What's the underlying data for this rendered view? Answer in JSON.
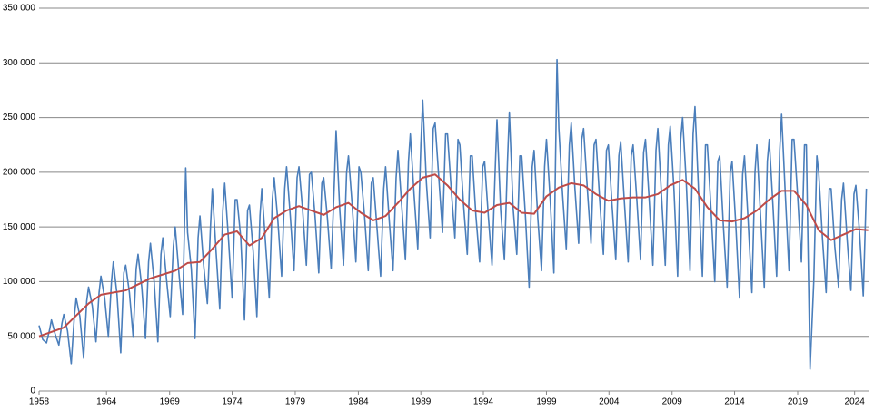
{
  "chart_data": {
    "type": "line",
    "xlim": [
      1958,
      2025.1
    ],
    "ylim": [
      0,
      350000
    ],
    "xticks": [
      {
        "value": 1958,
        "label": "1958"
      },
      {
        "value": 1963.45,
        "label": "1964"
      },
      {
        "value": 1968.55,
        "label": "1969"
      },
      {
        "value": 1973.6,
        "label": "1974"
      },
      {
        "value": 1978.7,
        "label": "1979"
      },
      {
        "value": 1983.8,
        "label": "1984"
      },
      {
        "value": 1988.85,
        "label": "1989"
      },
      {
        "value": 1993.9,
        "label": "1994"
      },
      {
        "value": 1999,
        "label": "1999"
      },
      {
        "value": 2004.05,
        "label": "2004"
      },
      {
        "value": 2009.15,
        "label": "2009"
      },
      {
        "value": 2014.2,
        "label": "2014"
      },
      {
        "value": 2019.3,
        "label": "2019"
      },
      {
        "value": 2023.9,
        "label": "2024"
      }
    ],
    "yticks": [
      {
        "value": 0,
        "label": "0"
      },
      {
        "value": 50000,
        "label": "50 000"
      },
      {
        "value": 100000,
        "label": "100 000"
      },
      {
        "value": 150000,
        "label": "150 000"
      },
      {
        "value": 200000,
        "label": "200 000"
      },
      {
        "value": 250000,
        "label": "250 000"
      },
      {
        "value": 300000,
        "label": "300 000"
      },
      {
        "value": 350000,
        "label": "350 000"
      }
    ],
    "grid": true,
    "series": [
      {
        "color": "#4a7ebb",
        "x": [
          1958,
          1958.3,
          1958.6,
          1958.85,
          1959,
          1959.3,
          1959.6,
          1959.85,
          1960,
          1960.3,
          1960.6,
          1960.85,
          1961,
          1961.3,
          1961.6,
          1961.85,
          1962,
          1962.3,
          1962.6,
          1962.85,
          1963,
          1963.3,
          1963.6,
          1963.85,
          1964,
          1964.3,
          1964.6,
          1964.85,
          1965,
          1965.3,
          1965.6,
          1965.85,
          1966,
          1966.3,
          1966.6,
          1966.85,
          1967,
          1967.3,
          1967.6,
          1967.85,
          1968,
          1968.3,
          1968.6,
          1968.85,
          1969,
          1969.3,
          1969.6,
          1969.85,
          1970,
          1970.3,
          1970.6,
          1970.85,
          1971,
          1971.3,
          1971.6,
          1971.85,
          1972,
          1972.3,
          1972.6,
          1972.85,
          1973,
          1973.3,
          1973.6,
          1973.85,
          1974,
          1974.3,
          1974.6,
          1974.85,
          1975,
          1975.3,
          1975.6,
          1975.85,
          1976,
          1976.3,
          1976.6,
          1976.85,
          1977,
          1977.3,
          1977.6,
          1977.85,
          1978,
          1978.3,
          1978.6,
          1978.85,
          1979,
          1979.3,
          1979.6,
          1979.85,
          1980,
          1980.3,
          1980.6,
          1980.85,
          1981,
          1981.3,
          1981.6,
          1981.85,
          1982,
          1982.3,
          1982.6,
          1982.85,
          1983,
          1983.3,
          1983.6,
          1983.85,
          1984,
          1984.3,
          1984.6,
          1984.85,
          1985,
          1985.3,
          1985.6,
          1985.85,
          1986,
          1986.3,
          1986.6,
          1986.85,
          1987,
          1987.3,
          1987.6,
          1987.85,
          1988,
          1988.3,
          1988.6,
          1988.85,
          1989,
          1989.3,
          1989.6,
          1989.85,
          1990,
          1990.3,
          1990.6,
          1990.85,
          1991,
          1991.3,
          1991.6,
          1991.85,
          1992,
          1992.3,
          1992.6,
          1992.85,
          1993,
          1993.3,
          1993.6,
          1993.85,
          1994,
          1994.3,
          1994.6,
          1994.85,
          1995,
          1995.3,
          1995.6,
          1995.85,
          1996,
          1996.3,
          1996.6,
          1996.85,
          1997,
          1997.3,
          1997.6,
          1997.85,
          1998,
          1998.3,
          1998.6,
          1998.85,
          1999,
          1999.3,
          1999.6,
          1999.85,
          2000,
          2000.3,
          2000.6,
          2000.85,
          2001,
          2001.3,
          2001.6,
          2001.85,
          2002,
          2002.3,
          2002.6,
          2002.85,
          2003,
          2003.3,
          2003.6,
          2003.85,
          2004,
          2004.3,
          2004.6,
          2004.85,
          2005,
          2005.3,
          2005.6,
          2005.85,
          2006,
          2006.3,
          2006.6,
          2006.85,
          2007,
          2007.3,
          2007.6,
          2007.85,
          2008,
          2008.3,
          2008.6,
          2008.85,
          2009,
          2009.3,
          2009.6,
          2009.85,
          2010,
          2010.3,
          2010.6,
          2010.85,
          2011,
          2011.3,
          2011.6,
          2011.85,
          2012,
          2012.3,
          2012.6,
          2012.85,
          2013,
          2013.3,
          2013.6,
          2013.85,
          2014,
          2014.3,
          2014.6,
          2014.85,
          2015,
          2015.3,
          2015.6,
          2015.85,
          2016,
          2016.3,
          2016.6,
          2016.85,
          2017,
          2017.3,
          2017.6,
          2017.85,
          2018,
          2018.3,
          2018.6,
          2018.85,
          2019,
          2019.3,
          2019.6,
          2019.85,
          2020,
          2020.3,
          2020.6,
          2020.85,
          2021,
          2021.3,
          2021.6,
          2021.85,
          2022,
          2022.3,
          2022.6,
          2022.85,
          2023,
          2023.3,
          2023.6,
          2023.85,
          2024,
          2024.3,
          2024.6,
          2024.85
        ],
        "values": [
          60000,
          47000,
          44000,
          56000,
          65000,
          52000,
          42000,
          62000,
          70000,
          55000,
          25000,
          68000,
          85000,
          68000,
          30000,
          82000,
          95000,
          78000,
          45000,
          90000,
          105000,
          85000,
          50000,
          100000,
          118000,
          88000,
          35000,
          108000,
          115000,
          90000,
          50000,
          112000,
          125000,
          95000,
          48000,
          118000,
          135000,
          100000,
          45000,
          125000,
          140000,
          102000,
          68000,
          132000,
          150000,
          108000,
          70000,
          204000,
          145000,
          112000,
          48000,
          140000,
          160000,
          115000,
          80000,
          150000,
          185000,
          128000,
          75000,
          165000,
          190000,
          140000,
          85000,
          175000,
          175000,
          140000,
          65000,
          165000,
          170000,
          128000,
          68000,
          160000,
          185000,
          135000,
          85000,
          175000,
          195000,
          155000,
          105000,
          185000,
          205000,
          160000,
          110000,
          195000,
          205000,
          165000,
          115000,
          198000,
          200000,
          160000,
          108000,
          190000,
          195000,
          158000,
          112000,
          188000,
          238000,
          165000,
          115000,
          200000,
          215000,
          170000,
          118000,
          205000,
          200000,
          160000,
          110000,
          190000,
          195000,
          150000,
          105000,
          185000,
          205000,
          155000,
          110000,
          195000,
          220000,
          170000,
          120000,
          210000,
          235000,
          180000,
          130000,
          225000,
          266000,
          190000,
          140000,
          240000,
          245000,
          195000,
          145000,
          235000,
          235000,
          185000,
          140000,
          230000,
          225000,
          170000,
          125000,
          215000,
          215000,
          160000,
          118000,
          205000,
          210000,
          160000,
          115000,
          200000,
          248000,
          165000,
          120000,
          210000,
          255000,
          168000,
          125000,
          215000,
          215000,
          160000,
          95000,
          205000,
          220000,
          158000,
          110000,
          205000,
          230000,
          175000,
          108000,
          303000,
          240000,
          180000,
          130000,
          225000,
          245000,
          185000,
          135000,
          230000,
          240000,
          185000,
          135000,
          225000,
          230000,
          175000,
          125000,
          220000,
          225000,
          170000,
          120000,
          215000,
          228000,
          172000,
          118000,
          215000,
          225000,
          175000,
          120000,
          218000,
          230000,
          175000,
          115000,
          220000,
          240000,
          178000,
          115000,
          225000,
          242000,
          185000,
          105000,
          230000,
          250000,
          190000,
          110000,
          235000,
          260000,
          180000,
          105000,
          225000,
          225000,
          165000,
          100000,
          210000,
          215000,
          150000,
          95000,
          200000,
          210000,
          152000,
          85000,
          198000,
          215000,
          155000,
          90000,
          200000,
          225000,
          160000,
          95000,
          210000,
          230000,
          170000,
          105000,
          220000,
          253000,
          180000,
          110000,
          230000,
          230000,
          178000,
          118000,
          225000,
          225000,
          20000,
          100000,
          215000,
          200000,
          140000,
          90000,
          185000,
          185000,
          132000,
          95000,
          175000,
          190000,
          138000,
          92000,
          180000,
          188000,
          145000,
          87000,
          185000
        ]
      },
      {
        "color": "#be4b48",
        "x": [
          1958,
          1960,
          1962,
          1963,
          1965,
          1967,
          1969,
          1970,
          1971,
          1972,
          1973,
          1974,
          1975,
          1976,
          1977,
          1978,
          1979,
          1980,
          1981,
          1982,
          1983,
          1984,
          1985,
          1986,
          1987,
          1988,
          1989,
          1990,
          1991,
          1992,
          1993,
          1994,
          1995,
          1996,
          1997,
          1998,
          1999,
          2000,
          2001,
          2002,
          2003,
          2004,
          2005,
          2006,
          2007,
          2008,
          2009,
          2010,
          2011,
          2012,
          2013,
          2014,
          2015,
          2016,
          2017,
          2018,
          2019,
          2020,
          2021,
          2022,
          2023,
          2024,
          2025
        ],
        "values": [
          50000,
          58000,
          80000,
          88000,
          92000,
          103000,
          110000,
          117000,
          118000,
          130000,
          143000,
          146000,
          133000,
          140000,
          158000,
          165000,
          169000,
          165000,
          161000,
          168000,
          172000,
          163000,
          156000,
          160000,
          172000,
          185000,
          195000,
          198000,
          188000,
          175000,
          165000,
          163000,
          170000,
          172000,
          163000,
          162000,
          178000,
          186000,
          190000,
          188000,
          180000,
          174000,
          176000,
          177000,
          177000,
          180000,
          188000,
          193000,
          185000,
          168000,
          156000,
          155000,
          158000,
          165000,
          175000,
          183000,
          183000,
          170000,
          147000,
          138000,
          143000,
          148000,
          147000
        ]
      }
    ]
  }
}
